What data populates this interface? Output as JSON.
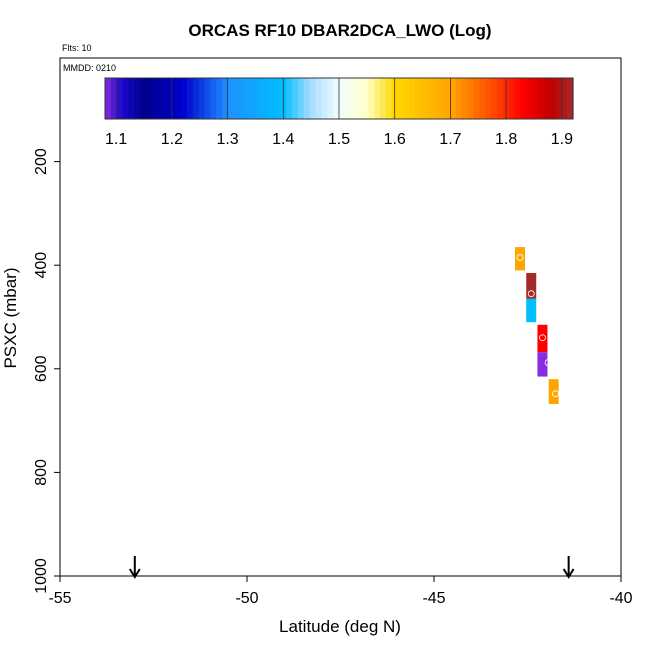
{
  "chart_data": {
    "type": "heatmap",
    "title": "ORCAS RF10 DBAR2DCA_LWO (Log)",
    "flts_label": "Flts: 10",
    "mmdd_label": "MMDD: 0210",
    "xlabel": "Latitude (deg N)",
    "ylabel": "PSXC (mbar)",
    "xlim": [
      -55,
      -40
    ],
    "ylim": [
      1000,
      0
    ],
    "x_ticks": [
      -55,
      -50,
      -45,
      -40
    ],
    "x_tick_labels": [
      "-55",
      "-50",
      "-45",
      "-40"
    ],
    "y_ticks": [
      200,
      400,
      600,
      800,
      1000
    ],
    "y_tick_labels": [
      "200",
      "400",
      "600",
      "800",
      "1000"
    ],
    "colorbar": {
      "min": 1.08,
      "max": 1.92,
      "ticks": [
        1.1,
        1.2,
        1.3,
        1.4,
        1.5,
        1.6,
        1.7,
        1.8,
        1.9
      ],
      "tick_labels": [
        "1.1",
        "1.2",
        "1.3",
        "1.4",
        "1.5",
        "1.6",
        "1.7",
        "1.8",
        "1.9"
      ],
      "stops": [
        {
          "v": 1.08,
          "color": "#8a2be2"
        },
        {
          "v": 1.11,
          "color": "#1a0acd"
        },
        {
          "v": 1.15,
          "color": "#00008b"
        },
        {
          "v": 1.22,
          "color": "#0000cd"
        },
        {
          "v": 1.3,
          "color": "#1e90ff"
        },
        {
          "v": 1.4,
          "color": "#00bfff"
        },
        {
          "v": 1.45,
          "color": "#aadcff"
        },
        {
          "v": 1.5,
          "color": "#f0ffff"
        },
        {
          "v": 1.55,
          "color": "#ffffc8"
        },
        {
          "v": 1.6,
          "color": "#ffd700"
        },
        {
          "v": 1.7,
          "color": "#ffa500"
        },
        {
          "v": 1.78,
          "color": "#ff4500"
        },
        {
          "v": 1.83,
          "color": "#ff0000"
        },
        {
          "v": 1.88,
          "color": "#c00000"
        },
        {
          "v": 1.92,
          "color": "#a52a2a"
        }
      ]
    },
    "cells": [
      {
        "lat": -42.7,
        "p_top": 365,
        "p_bottom": 410,
        "value": 1.7,
        "color": "#ffa500"
      },
      {
        "lat": -42.4,
        "p_top": 415,
        "p_bottom": 465,
        "value": 1.92,
        "color": "#a52a2a"
      },
      {
        "lat": -42.4,
        "p_top": 465,
        "p_bottom": 510,
        "value": 1.4,
        "color": "#00bfff"
      },
      {
        "lat": -42.1,
        "p_top": 515,
        "p_bottom": 568,
        "value": 1.83,
        "color": "#ff0000"
      },
      {
        "lat": -42.1,
        "p_top": 568,
        "p_bottom": 615,
        "value": 1.09,
        "color": "#8a2be2"
      },
      {
        "lat": -41.8,
        "p_top": 620,
        "p_bottom": 668,
        "value": 1.7,
        "color": "#ffa500"
      }
    ],
    "markers": [
      {
        "lat": -42.7,
        "p": 385
      },
      {
        "lat": -42.4,
        "p": 455
      },
      {
        "lat": -42.1,
        "p": 540
      },
      {
        "lat": -41.95,
        "p": 588
      },
      {
        "lat": -41.75,
        "p": 648
      }
    ],
    "arrows": [
      {
        "lat": -53.0
      },
      {
        "lat": -41.4
      }
    ]
  }
}
